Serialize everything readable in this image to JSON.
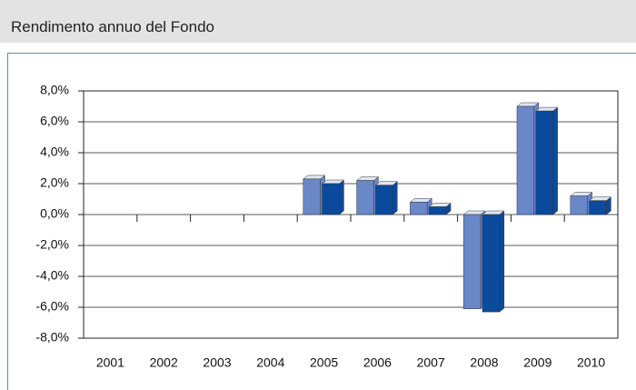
{
  "header": {
    "title": "Rendimento annuo del Fondo"
  },
  "chart_data": {
    "type": "bar",
    "categories": [
      "2001",
      "2002",
      "2003",
      "2004",
      "2005",
      "2006",
      "2007",
      "2008",
      "2009",
      "2010"
    ],
    "series": [
      {
        "color": "#6a87c8",
        "values": [
          null,
          null,
          null,
          null,
          2.3,
          2.2,
          0.8,
          -6.1,
          7.0,
          1.2
        ]
      },
      {
        "color": "#0b4a9c",
        "values": [
          null,
          null,
          null,
          null,
          2.0,
          1.9,
          0.5,
          -6.3,
          6.7,
          0.9
        ]
      }
    ],
    "ylim": [
      -8,
      8
    ],
    "yticks": [
      {
        "value": -8,
        "label": "-8,0%"
      },
      {
        "value": -6,
        "label": "-6,0%"
      },
      {
        "value": -4,
        "label": "-4,0%"
      },
      {
        "value": -2,
        "label": "-2,0%"
      },
      {
        "value": 0,
        "label": "0,0%"
      },
      {
        "value": 2,
        "label": "2,0%"
      },
      {
        "value": 4,
        "label": "4,0%"
      },
      {
        "value": 6,
        "label": "6,0%"
      },
      {
        "value": 8,
        "label": "8,0%"
      }
    ],
    "grid": true
  }
}
